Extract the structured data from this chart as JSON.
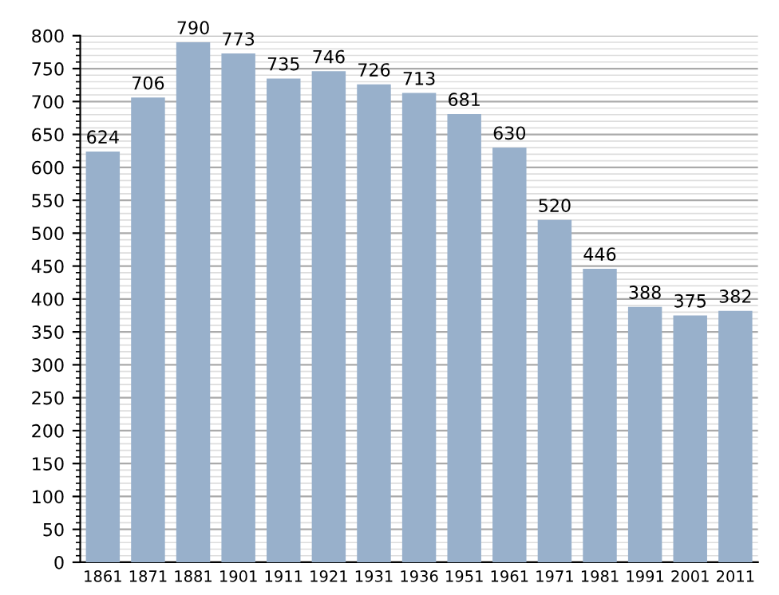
{
  "chart_data": {
    "type": "bar",
    "categories": [
      "1861",
      "1871",
      "1881",
      "1901",
      "1911",
      "1921",
      "1931",
      "1936",
      "1951",
      "1961",
      "1971",
      "1981",
      "1991",
      "2001",
      "2011"
    ],
    "values": [
      624,
      706,
      790,
      773,
      735,
      746,
      726,
      713,
      681,
      630,
      520,
      446,
      388,
      375,
      382
    ],
    "color": "#98b0cb",
    "data_labels": true,
    "ylim": [
      0,
      800
    ],
    "yticks": [
      0,
      50,
      100,
      150,
      200,
      250,
      300,
      350,
      400,
      450,
      500,
      550,
      600,
      650,
      700,
      750,
      800
    ],
    "grid": "y"
  }
}
